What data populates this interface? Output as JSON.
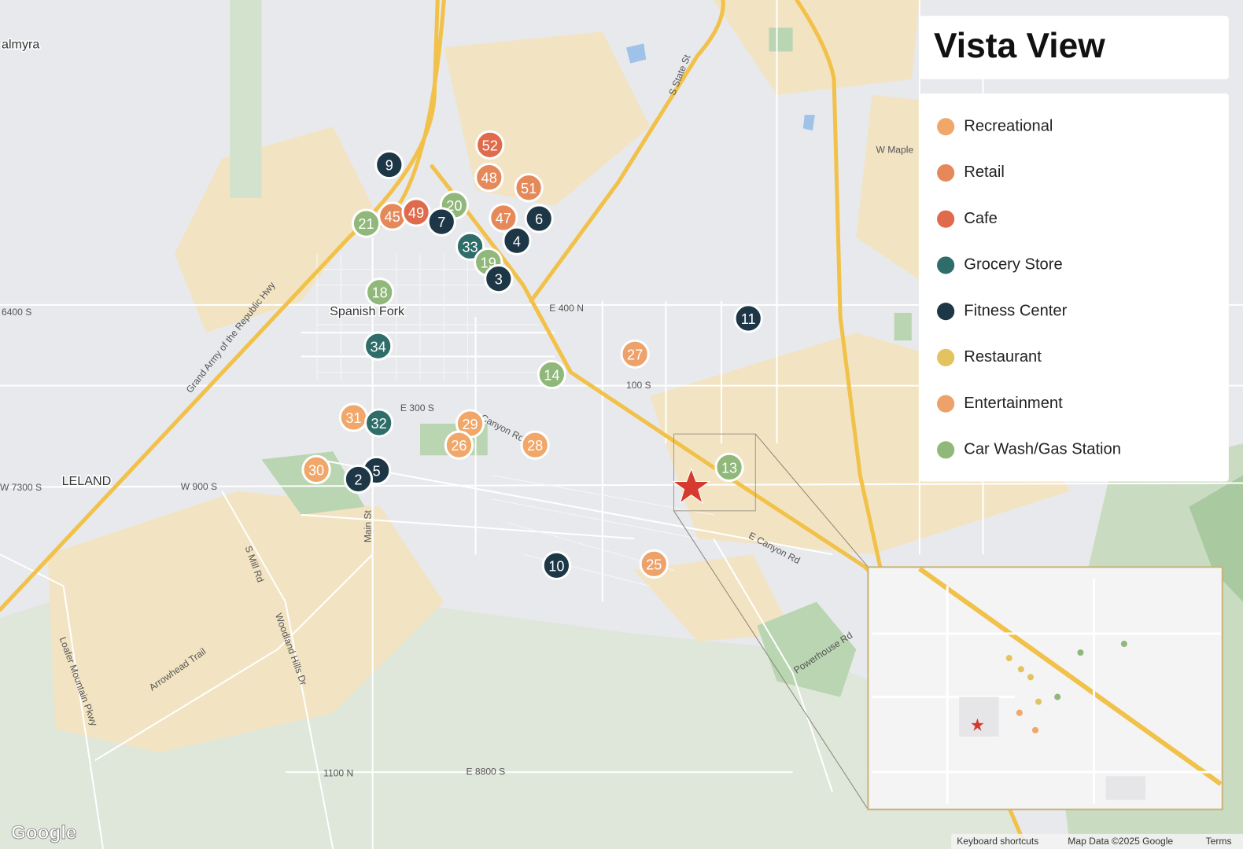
{
  "title": "Vista View",
  "legend": [
    {
      "label": "Recreational",
      "color": "#f0a769"
    },
    {
      "label": "Retail",
      "color": "#e5895b"
    },
    {
      "label": "Cafe",
      "color": "#df6a4c"
    },
    {
      "label": "Grocery Store",
      "color": "#2e6d69"
    },
    {
      "label": "Fitness Center",
      "color": "#1e3747"
    },
    {
      "label": "Restaurant",
      "color": "#e2c35f"
    },
    {
      "label": "Entertainment",
      "color": "#eda26b"
    },
    {
      "label": "Car Wash/Gas Station",
      "color": "#8fb87a"
    }
  ],
  "markers": [
    {
      "label": "52",
      "color": "#df6a4c"
    },
    {
      "label": "48",
      "color": "#e5895b"
    },
    {
      "label": "51",
      "color": "#e5895b"
    },
    {
      "label": "9",
      "color": "#1e3747"
    },
    {
      "label": "21",
      "color": "#8fb87a"
    },
    {
      "label": "45",
      "color": "#e5895b"
    },
    {
      "label": "49",
      "color": "#df6a4c"
    },
    {
      "label": "20",
      "color": "#8fb87a"
    },
    {
      "label": "47",
      "color": "#e5895b"
    },
    {
      "label": "7",
      "color": "#1e3747"
    },
    {
      "label": "6",
      "color": "#1e3747"
    },
    {
      "label": "33",
      "color": "#2e6d69"
    },
    {
      "label": "4",
      "color": "#1e3747"
    },
    {
      "label": "19",
      "color": "#8fb87a"
    },
    {
      "label": "3",
      "color": "#1e3747"
    },
    {
      "label": "18",
      "color": "#8fb87a"
    },
    {
      "label": "11",
      "color": "#1e3747"
    },
    {
      "label": "34",
      "color": "#2e6d69"
    },
    {
      "label": "27",
      "color": "#eda26b"
    },
    {
      "label": "14",
      "color": "#8fb87a"
    },
    {
      "label": "31",
      "color": "#f0a769"
    },
    {
      "label": "32",
      "color": "#2e6d69"
    },
    {
      "label": "29",
      "color": "#f0a769"
    },
    {
      "label": "26",
      "color": "#f0a769"
    },
    {
      "label": "28",
      "color": "#f0a769"
    },
    {
      "label": "30",
      "color": "#f0a769"
    },
    {
      "label": "5",
      "color": "#1e3747"
    },
    {
      "label": "2",
      "color": "#1e3747"
    },
    {
      "label": "13",
      "color": "#8fb87a"
    },
    {
      "label": "10",
      "color": "#1e3747"
    },
    {
      "label": "25",
      "color": "#eda26b"
    }
  ],
  "street_labels": [
    "almyra",
    "Spanish Fork",
    "E 400 N",
    "100 S",
    "E 300 S",
    "LELAND",
    "W 900 S",
    "W 7300 S",
    "6400 S",
    "Main St",
    "S Mill Rd",
    "Woodland Hills Dr",
    "Arrowhead Trail",
    "Loafer Mountain Pkwy",
    "Grand Army of the Republic Hwy",
    "S State St",
    "W Maple",
    "E Canyon Rd",
    "Powerhouse Rd",
    "1100 N",
    "E 8800 S",
    "Canyon Rd"
  ],
  "attribution": {
    "logo": "Google",
    "shortcuts": "Keyboard shortcuts",
    "map_data": "Map Data ©2025 Google",
    "terms": "Terms"
  }
}
